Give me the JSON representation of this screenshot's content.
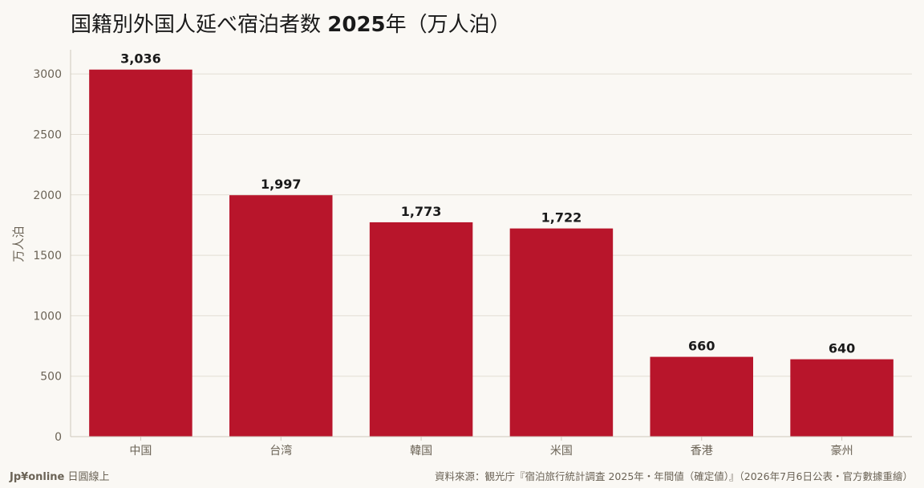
{
  "title": {
    "main": "国籍別外国人延べ宿泊者数",
    "year": "2025",
    "suffix": "年（万人泊）"
  },
  "footer": {
    "brand_logo": "Jp¥online",
    "brand_text": "日圓線上",
    "source": "資料來源：観光庁『宿泊旅行統計調査 2025年・年間値（確定値）』（2026年7月6日公表・官方數據重繪）"
  },
  "chart_data": {
    "type": "bar",
    "categories": [
      "中国",
      "台湾",
      "韓国",
      "米国",
      "香港",
      "豪州"
    ],
    "values": [
      3036,
      1997,
      1773,
      1722,
      660,
      640
    ],
    "value_labels": [
      "3,036",
      "1,997",
      "1,773",
      "1,722",
      "660",
      "640"
    ],
    "ylabel": "万人泊",
    "ylim": [
      0,
      3200
    ],
    "yticks": [
      0,
      500,
      1000,
      1500,
      2000,
      2500,
      3000
    ],
    "grid": true,
    "bar_color": "#b8152b",
    "grid_color": "#e2ddd4",
    "axis_color": "#cfc8bc"
  }
}
